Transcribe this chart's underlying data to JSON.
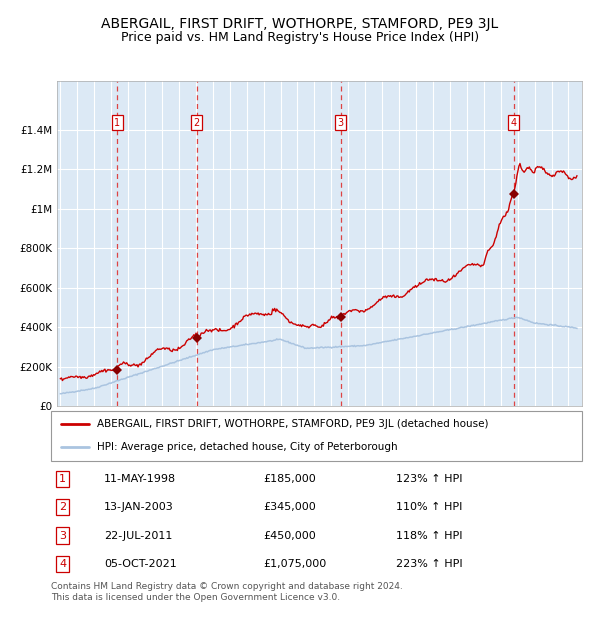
{
  "title": "ABERGAIL, FIRST DRIFT, WOTHORPE, STAMFORD, PE9 3JL",
  "subtitle": "Price paid vs. HM Land Registry's House Price Index (HPI)",
  "title_fontsize": 10,
  "subtitle_fontsize": 9,
  "plot_bg_color": "#dce9f5",
  "grid_color": "#ffffff",
  "hpi_color": "#aac4e0",
  "price_color": "#cc0000",
  "sale_marker_color": "#880000",
  "dashed_line_color": "#dd4444",
  "ylim": [
    0,
    1650000
  ],
  "yticks": [
    0,
    200000,
    400000,
    600000,
    800000,
    1000000,
    1200000,
    1400000
  ],
  "ytick_labels": [
    "£0",
    "£200K",
    "£400K",
    "£600K",
    "£800K",
    "£1M",
    "£1.2M",
    "£1.4M"
  ],
  "xlim_start": 1994.8,
  "xlim_end": 2025.8,
  "xticks": [
    1995,
    1996,
    1997,
    1998,
    1999,
    2000,
    2001,
    2002,
    2003,
    2004,
    2005,
    2006,
    2007,
    2008,
    2009,
    2010,
    2011,
    2012,
    2013,
    2014,
    2015,
    2016,
    2017,
    2018,
    2019,
    2020,
    2021,
    2022,
    2023,
    2024,
    2025
  ],
  "sale_events": [
    {
      "num": 1,
      "year": 1998.36,
      "price": 185000,
      "date": "11-MAY-1998",
      "hpi_pct": "123%"
    },
    {
      "num": 2,
      "year": 2003.04,
      "price": 345000,
      "date": "13-JAN-2003",
      "hpi_pct": "110%"
    },
    {
      "num": 3,
      "year": 2011.55,
      "price": 450000,
      "date": "22-JUL-2011",
      "hpi_pct": "118%"
    },
    {
      "num": 4,
      "year": 2021.76,
      "price": 1075000,
      "date": "05-OCT-2021",
      "hpi_pct": "223%"
    }
  ],
  "legend_label_red": "ABERGAIL, FIRST DRIFT, WOTHORPE, STAMFORD, PE9 3JL (detached house)",
  "legend_label_blue": "HPI: Average price, detached house, City of Peterborough",
  "footnote": "Contains HM Land Registry data © Crown copyright and database right 2024.\nThis data is licensed under the Open Government Licence v3.0.",
  "table_rows": [
    {
      "num": 1,
      "date": "11-MAY-1998",
      "price": "£185,000",
      "hpi": "123% ↑ HPI"
    },
    {
      "num": 2,
      "date": "13-JAN-2003",
      "price": "£345,000",
      "hpi": "110% ↑ HPI"
    },
    {
      "num": 3,
      "date": "22-JUL-2011",
      "price": "£450,000",
      "hpi": "118% ↑ HPI"
    },
    {
      "num": 4,
      "date": "05-OCT-2021",
      "price": "£1,075,000",
      "hpi": "223% ↑ HPI"
    }
  ]
}
